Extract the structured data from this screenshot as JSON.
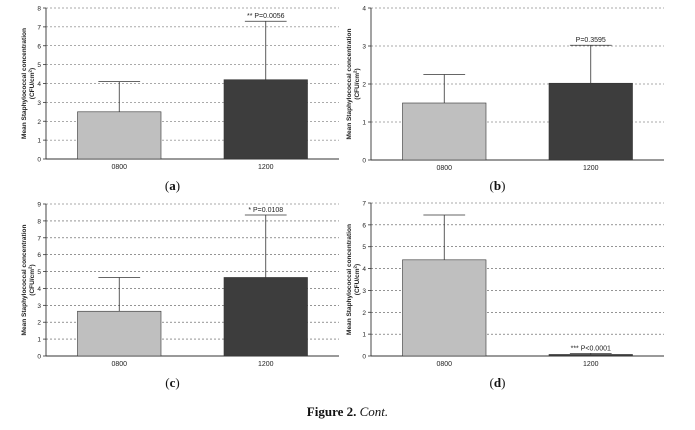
{
  "chart_data": [
    {
      "type": "bar",
      "panel_label": "(a)",
      "ylabel": "Mean Staphylococcal concentration",
      "ylabel_unit": "(CFU/cm",
      "ylabel_sup": "2",
      "ylabel_close": ")",
      "categories": [
        "0800",
        "1200"
      ],
      "values": [
        2.5,
        4.2
      ],
      "error_upper": [
        4.1,
        7.3
      ],
      "bar_colors": [
        "#bfbfbf",
        "#3d3d3d"
      ],
      "ylim": [
        0,
        8
      ],
      "yticks": [
        "0",
        "1",
        "2",
        "3",
        "4",
        "5",
        "6",
        "7",
        "8"
      ],
      "grid": "dotted-horizontal",
      "annotation": {
        "bar_index": 1,
        "text": "** P=0.0056"
      }
    },
    {
      "type": "bar",
      "panel_label": "(b)",
      "ylabel": "Mean Staphylococcal concentration",
      "ylabel_unit": "(CFU/cm",
      "ylabel_sup": "2",
      "ylabel_close": ")",
      "categories": [
        "0800",
        "1200"
      ],
      "values": [
        1.5,
        2.02
      ],
      "error_upper": [
        2.25,
        3.02
      ],
      "bar_colors": [
        "#bfbfbf",
        "#3d3d3d"
      ],
      "ylim": [
        0,
        4
      ],
      "yticks": [
        "0",
        "1",
        "2",
        "3",
        "4"
      ],
      "grid": "dotted-horizontal",
      "annotation": {
        "bar_index": 1,
        "text": "P=0.3595"
      }
    },
    {
      "type": "bar",
      "panel_label": "(c)",
      "ylabel": "Mean Staphylococcal concentration",
      "ylabel_unit": "(CFU/cm",
      "ylabel_sup": "2",
      "ylabel_close": ")",
      "categories": [
        "0800",
        "1200"
      ],
      "values": [
        2.65,
        4.65
      ],
      "error_upper": [
        4.65,
        8.35
      ],
      "bar_colors": [
        "#bfbfbf",
        "#3d3d3d"
      ],
      "ylim": [
        0,
        9
      ],
      "yticks": [
        "0",
        "1",
        "2",
        "3",
        "4",
        "5",
        "6",
        "7",
        "8",
        "9"
      ],
      "grid": "dotted-horizontal",
      "annotation": {
        "bar_index": 1,
        "text": "* P=0.0108"
      }
    },
    {
      "type": "bar",
      "panel_label": "(d)",
      "ylabel": "Mean Staphylococcal concentration",
      "ylabel_unit": "(CFU/cm",
      "ylabel_sup": "2",
      "ylabel_close": ")",
      "categories": [
        "0800",
        "1200"
      ],
      "values": [
        4.4,
        0.07
      ],
      "error_upper": [
        6.45,
        0.12
      ],
      "bar_colors": [
        "#bfbfbf",
        "#3d3d3d"
      ],
      "ylim": [
        0,
        7
      ],
      "yticks": [
        "0",
        "1",
        "2",
        "3",
        "4",
        "5",
        "6",
        "7"
      ],
      "grid": "dotted-horizontal",
      "annotation": {
        "bar_index": 1,
        "text": "*** P<0.0001"
      }
    }
  ],
  "caption": {
    "bold": "Figure 2.",
    "italic": "Cont."
  }
}
